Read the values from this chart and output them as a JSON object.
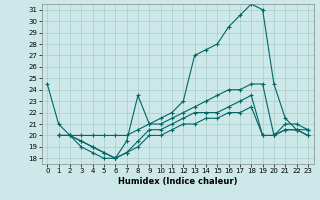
{
  "xlabel": "Humidex (Indice chaleur)",
  "background_color": "#cce8e8",
  "line_color": "#006666",
  "grid_color": "#aacccc",
  "xlim": [
    -0.5,
    23.5
  ],
  "ylim": [
    17.5,
    31.5
  ],
  "yticks": [
    18,
    19,
    20,
    21,
    22,
    23,
    24,
    25,
    26,
    27,
    28,
    29,
    30,
    31
  ],
  "xticks": [
    0,
    1,
    2,
    3,
    4,
    5,
    6,
    7,
    8,
    9,
    10,
    11,
    12,
    13,
    14,
    15,
    16,
    17,
    18,
    19,
    20,
    21,
    22,
    23
  ],
  "line1_x": [
    0,
    1,
    2,
    3,
    4,
    5,
    6,
    7,
    8,
    9,
    10,
    11,
    12,
    13,
    14,
    15,
    16,
    17,
    18,
    19,
    20,
    21,
    22,
    23
  ],
  "line1_y": [
    24.5,
    21,
    20,
    19,
    18.5,
    18,
    18,
    19.5,
    23.5,
    21,
    21.5,
    22,
    23,
    27,
    27.5,
    28,
    29.5,
    30.5,
    31.5,
    31,
    24.5,
    21.5,
    20.5,
    20.5
  ],
  "line2_x": [
    1,
    2,
    3,
    4,
    5,
    6,
    7,
    8,
    9,
    10,
    11,
    12,
    13,
    14,
    15,
    16,
    17,
    18,
    19,
    20,
    21,
    22,
    23
  ],
  "line2_y": [
    20,
    20,
    20,
    20,
    20,
    20,
    20,
    20.5,
    21,
    21,
    21.5,
    22,
    22.5,
    23,
    23.5,
    24,
    24,
    24.5,
    24.5,
    20,
    21,
    21,
    20.5
  ],
  "line3_x": [
    1,
    2,
    3,
    4,
    5,
    6,
    7,
    8,
    9,
    10,
    11,
    12,
    13,
    14,
    15,
    16,
    17,
    18,
    19,
    20,
    21,
    22,
    23
  ],
  "line3_y": [
    20,
    20,
    19.5,
    19,
    18.5,
    18,
    18.5,
    19.5,
    20.5,
    20.5,
    21,
    21.5,
    22,
    22,
    22,
    22.5,
    23,
    23.5,
    20,
    20,
    20.5,
    20.5,
    20
  ],
  "line4_x": [
    1,
    2,
    3,
    4,
    5,
    6,
    7,
    8,
    9,
    10,
    11,
    12,
    13,
    14,
    15,
    16,
    17,
    18,
    19,
    20,
    21,
    22,
    23
  ],
  "line4_y": [
    20,
    20,
    19.5,
    19,
    18.5,
    18,
    18.5,
    19,
    20,
    20,
    20.5,
    21,
    21,
    21.5,
    21.5,
    22,
    22,
    22.5,
    20,
    20,
    20.5,
    20.5,
    20
  ]
}
